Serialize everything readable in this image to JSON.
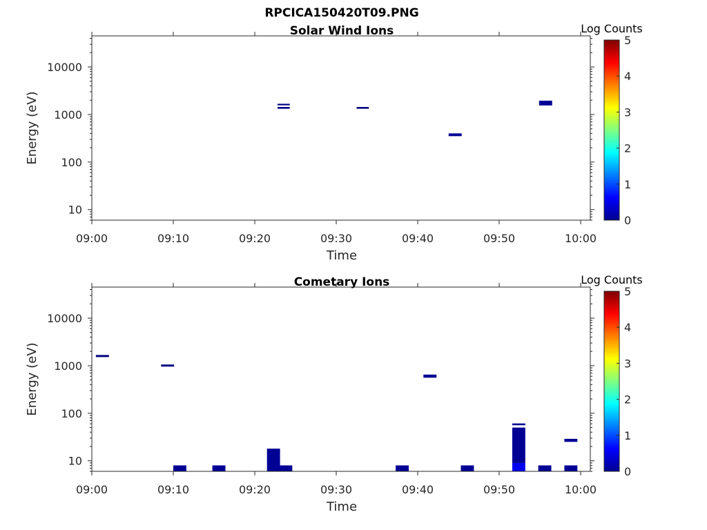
{
  "figure": {
    "title": "RPCICA150420T09.PNG"
  },
  "colorbar": {
    "label": "Log Counts",
    "ticks": [
      "0",
      "1",
      "2",
      "3",
      "4",
      "5"
    ],
    "range": [
      0,
      5
    ],
    "colormap": "jet"
  },
  "chart_data": [
    {
      "type": "heatmap",
      "title": "Solar Wind Ions",
      "xlabel": "Time",
      "ylabel": "Energy (eV)",
      "y_scale": "log",
      "x_range_minutes": [
        0,
        61
      ],
      "ylim": [
        6,
        45000
      ],
      "x_tick_labels": [
        "09:00",
        "09:10",
        "09:20",
        "09:30",
        "09:40",
        "09:50",
        "10:00"
      ],
      "y_tick_labels": [
        "10",
        "100",
        "1000",
        "10000"
      ],
      "grid": false,
      "cells": [
        {
          "t_start": "09:22.8",
          "t_end": "09:24.3",
          "e_low": 1560,
          "e_high": 1680,
          "log_counts": 0
        },
        {
          "t_start": "09:22.8",
          "t_end": "09:24.3",
          "e_low": 1320,
          "e_high": 1440,
          "log_counts": 0
        },
        {
          "t_start": "09:32.5",
          "t_end": "09:34.0",
          "e_low": 1320,
          "e_high": 1440,
          "log_counts": 0
        },
        {
          "t_start": "09:43.8",
          "t_end": "09:45.4",
          "e_low": 350,
          "e_high": 400,
          "log_counts": 0.1
        },
        {
          "t_start": "09:54.9",
          "t_end": "09:56.5",
          "e_low": 1550,
          "e_high": 1950,
          "log_counts": 0.1
        }
      ]
    },
    {
      "type": "heatmap",
      "title": "Cometary Ions",
      "xlabel": "Time",
      "ylabel": "Energy (eV)",
      "y_scale": "log",
      "x_range_minutes": [
        0,
        61
      ],
      "ylim": [
        6,
        45000
      ],
      "x_tick_labels": [
        "09:00",
        "09:10",
        "09:20",
        "09:30",
        "09:40",
        "09:50",
        "10:00"
      ],
      "y_tick_labels": [
        "10",
        "100",
        "1000",
        "10000"
      ],
      "grid": false,
      "cells": [
        {
          "t_start": "09:00.5",
          "t_end": "09:02.1",
          "e_low": 1520,
          "e_high": 1680,
          "log_counts": 0
        },
        {
          "t_start": "09:08.5",
          "t_end": "09:10.1",
          "e_low": 960,
          "e_high": 1060,
          "log_counts": 0
        },
        {
          "t_start": "09:10.0",
          "t_end": "09:11.6",
          "e_low": 6,
          "e_high": 8,
          "log_counts": 0.1
        },
        {
          "t_start": "09:14.8",
          "t_end": "09:16.4",
          "e_low": 6,
          "e_high": 8,
          "log_counts": 0.1
        },
        {
          "t_start": "09:21.5",
          "t_end": "09:23.1",
          "e_low": 6,
          "e_high": 18,
          "log_counts": 0.1
        },
        {
          "t_start": "09:23.0",
          "t_end": "09:24.6",
          "e_low": 6,
          "e_high": 8,
          "log_counts": 0.1
        },
        {
          "t_start": "09:37.3",
          "t_end": "09:38.9",
          "e_low": 6,
          "e_high": 8,
          "log_counts": 0.1
        },
        {
          "t_start": "09:40.7",
          "t_end": "09:42.3",
          "e_low": 560,
          "e_high": 650,
          "log_counts": 0.1
        },
        {
          "t_start": "09:45.3",
          "t_end": "09:46.9",
          "e_low": 6,
          "e_high": 8,
          "log_counts": 0.1
        },
        {
          "t_start": "09:51.6",
          "t_end": "09:53.2",
          "e_low": 56,
          "e_high": 61,
          "log_counts": 0.1
        },
        {
          "t_start": "09:51.6",
          "t_end": "09:53.2",
          "e_low": 9,
          "e_high": 50,
          "log_counts": 0.1
        },
        {
          "t_start": "09:51.6",
          "t_end": "09:53.2",
          "e_low": 6,
          "e_high": 9,
          "log_counts": 0.55
        },
        {
          "t_start": "09:54.8",
          "t_end": "09:56.4",
          "e_low": 6,
          "e_high": 8,
          "log_counts": 0.1
        },
        {
          "t_start": "09:58.0",
          "t_end": "09:59.6",
          "e_low": 6,
          "e_high": 8,
          "log_counts": 0.1
        },
        {
          "t_start": "09:58.0",
          "t_end": "09:59.6",
          "e_low": 25,
          "e_high": 29,
          "log_counts": 0.1
        }
      ]
    }
  ]
}
